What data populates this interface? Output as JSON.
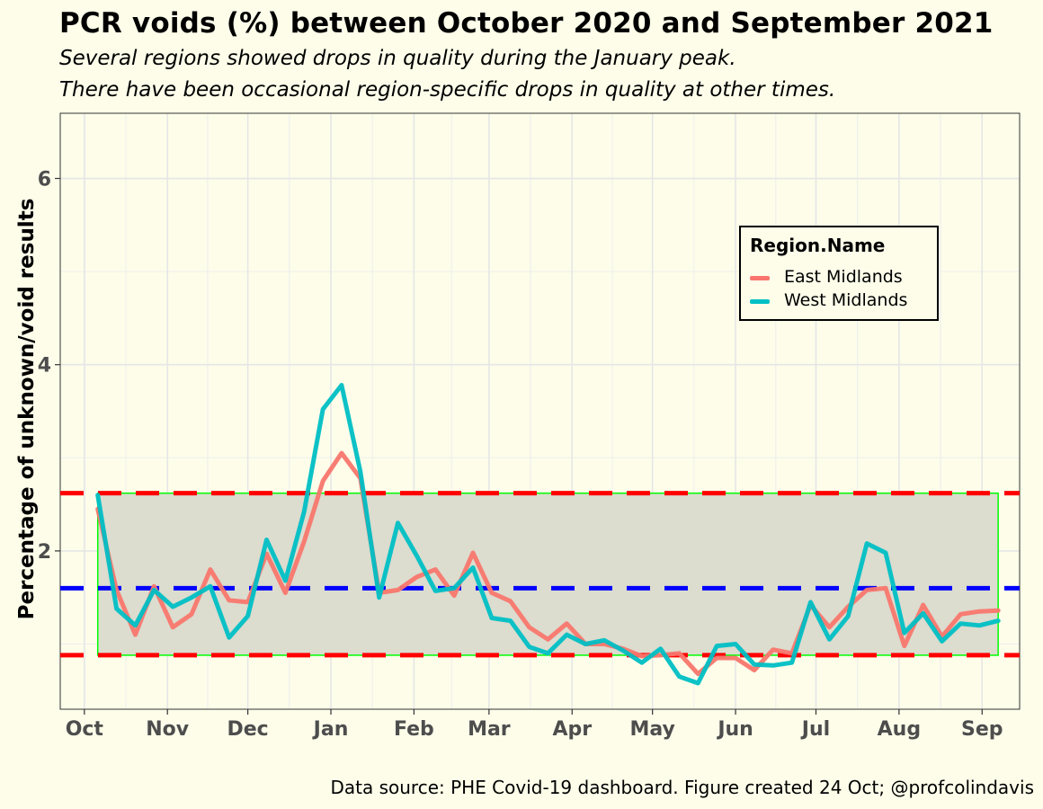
{
  "figure": {
    "title": "PCR voids (%) between October 2020 and September 2021",
    "subtitle_lines": [
      "Several regions showed drops in quality during the January peak.",
      "There have been occasional region-specific drops in quality at other times."
    ],
    "caption": "Data source: PHE Covid-19 dashboard. Figure created 24 Oct; @profcolindavis"
  },
  "legend": {
    "title": "Region.Name",
    "items": [
      {
        "label": "East Midlands",
        "color": "#f8766d"
      },
      {
        "label": "West Midlands",
        "color": "#00bfc4"
      }
    ]
  },
  "chart_data": {
    "type": "line",
    "title": "PCR voids (%) between October 2020 and September 2021",
    "xlabel": "",
    "ylabel": "Percentage of unknown/void results",
    "x_tick_labels": [
      "Oct",
      "Nov",
      "Dec",
      "Jan",
      "Feb",
      "Mar",
      "Apr",
      "May",
      "Jun",
      "Jul",
      "Aug",
      "Sep"
    ],
    "x_tick_dates": [
      "2020-10-01",
      "2020-11-01",
      "2020-12-01",
      "2021-01-01",
      "2021-02-01",
      "2021-03-01",
      "2021-04-01",
      "2021-05-01",
      "2021-06-01",
      "2021-07-01",
      "2021-08-01",
      "2021-09-01"
    ],
    "x_range": [
      "2020-09-22",
      "2021-09-15"
    ],
    "y_ticks": [
      2,
      4,
      6
    ],
    "ylim": [
      0.3,
      6.7
    ],
    "grid": true,
    "legend_position": "top-right",
    "x": [
      "2020-10-06",
      "2020-10-13",
      "2020-10-20",
      "2020-10-27",
      "2020-11-03",
      "2020-11-10",
      "2020-11-17",
      "2020-11-24",
      "2020-12-01",
      "2020-12-08",
      "2020-12-15",
      "2020-12-22",
      "2020-12-29",
      "2021-01-05",
      "2021-01-12",
      "2021-01-19",
      "2021-01-26",
      "2021-02-02",
      "2021-02-09",
      "2021-02-16",
      "2021-02-23",
      "2021-03-02",
      "2021-03-09",
      "2021-03-16",
      "2021-03-23",
      "2021-03-30",
      "2021-04-06",
      "2021-04-13",
      "2021-04-20",
      "2021-04-27",
      "2021-05-04",
      "2021-05-11",
      "2021-05-18",
      "2021-05-25",
      "2021-06-01",
      "2021-06-08",
      "2021-06-15",
      "2021-06-22",
      "2021-06-29",
      "2021-07-06",
      "2021-07-13",
      "2021-07-20",
      "2021-07-27",
      "2021-08-03",
      "2021-08-10",
      "2021-08-17",
      "2021-08-24",
      "2021-08-31",
      "2021-09-07"
    ],
    "series": [
      {
        "name": "East Midlands",
        "color": "#f8766d",
        "values": [
          2.45,
          1.58,
          1.1,
          1.62,
          1.18,
          1.32,
          1.8,
          1.47,
          1.45,
          1.97,
          1.55,
          2.1,
          2.75,
          3.05,
          2.78,
          1.55,
          1.58,
          1.72,
          1.8,
          1.52,
          1.98,
          1.55,
          1.46,
          1.18,
          1.05,
          1.22,
          1.0,
          1.0,
          0.95,
          0.87,
          0.88,
          0.9,
          0.68,
          0.85,
          0.85,
          0.72,
          0.94,
          0.9,
          1.42,
          1.18,
          1.4,
          1.58,
          1.6,
          0.98,
          1.42,
          1.08,
          1.32,
          1.35,
          1.36
        ]
      },
      {
        "name": "West Midlands",
        "color": "#00bfc4",
        "values": [
          2.6,
          1.38,
          1.2,
          1.58,
          1.4,
          1.5,
          1.62,
          1.07,
          1.3,
          2.12,
          1.68,
          2.42,
          3.52,
          3.78,
          2.85,
          1.5,
          2.3,
          1.95,
          1.57,
          1.6,
          1.82,
          1.28,
          1.25,
          0.97,
          0.9,
          1.1,
          1.0,
          1.04,
          0.93,
          0.8,
          0.95,
          0.65,
          0.58,
          0.98,
          1.0,
          0.78,
          0.77,
          0.8,
          1.45,
          1.05,
          1.3,
          2.08,
          1.98,
          1.12,
          1.33,
          1.03,
          1.22,
          1.2,
          1.25
        ]
      }
    ],
    "reference_lines": [
      {
        "y": 2.62,
        "color": "#ff0000",
        "style": "dashed"
      },
      {
        "y": 1.6,
        "color": "#0000ff",
        "style": "dashed"
      },
      {
        "y": 0.88,
        "color": "#ff0000",
        "style": "dashed"
      }
    ],
    "band": {
      "y0": 0.88,
      "y1": 2.62,
      "fill": "#dcdccf",
      "stroke": "#00ff00"
    }
  }
}
